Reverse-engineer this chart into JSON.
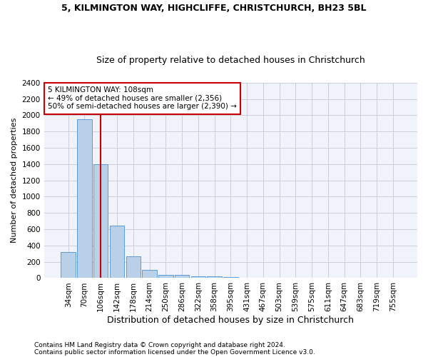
{
  "title1": "5, KILMINGTON WAY, HIGHCLIFFE, CHRISTCHURCH, BH23 5BL",
  "title2": "Size of property relative to detached houses in Christchurch",
  "xlabel": "Distribution of detached houses by size in Christchurch",
  "ylabel": "Number of detached properties",
  "footer1": "Contains HM Land Registry data © Crown copyright and database right 2024.",
  "footer2": "Contains public sector information licensed under the Open Government Licence v3.0.",
  "bar_labels": [
    "34sqm",
    "70sqm",
    "106sqm",
    "142sqm",
    "178sqm",
    "214sqm",
    "250sqm",
    "286sqm",
    "322sqm",
    "358sqm",
    "395sqm",
    "431sqm",
    "467sqm",
    "503sqm",
    "539sqm",
    "575sqm",
    "611sqm",
    "647sqm",
    "683sqm",
    "719sqm",
    "755sqm"
  ],
  "bar_values": [
    320,
    1950,
    1400,
    640,
    270,
    100,
    40,
    40,
    25,
    20,
    15,
    0,
    0,
    0,
    0,
    0,
    0,
    0,
    0,
    0,
    0
  ],
  "bar_color": "#b8d0e8",
  "bar_edge_color": "#5b9bd5",
  "vline_x_index": 2,
  "vline_color": "#cc0000",
  "annotation_text": "5 KILMINGTON WAY: 108sqm\n← 49% of detached houses are smaller (2,356)\n50% of semi-detached houses are larger (2,390) →",
  "annotation_box_color": "#cc0000",
  "ylim": [
    0,
    2400
  ],
  "yticks": [
    0,
    200,
    400,
    600,
    800,
    1000,
    1200,
    1400,
    1600,
    1800,
    2000,
    2200,
    2400
  ],
  "grid_color": "#c8c8d8",
  "background_color": "#ffffff",
  "plot_bg_color": "#f0f4fa",
  "fig_width": 6.0,
  "fig_height": 5.0,
  "title1_fontsize": 9,
  "title2_fontsize": 9,
  "xlabel_fontsize": 9,
  "ylabel_fontsize": 8,
  "tick_fontsize": 7.5,
  "annotation_fontsize": 7.5,
  "footer_fontsize": 6.5
}
